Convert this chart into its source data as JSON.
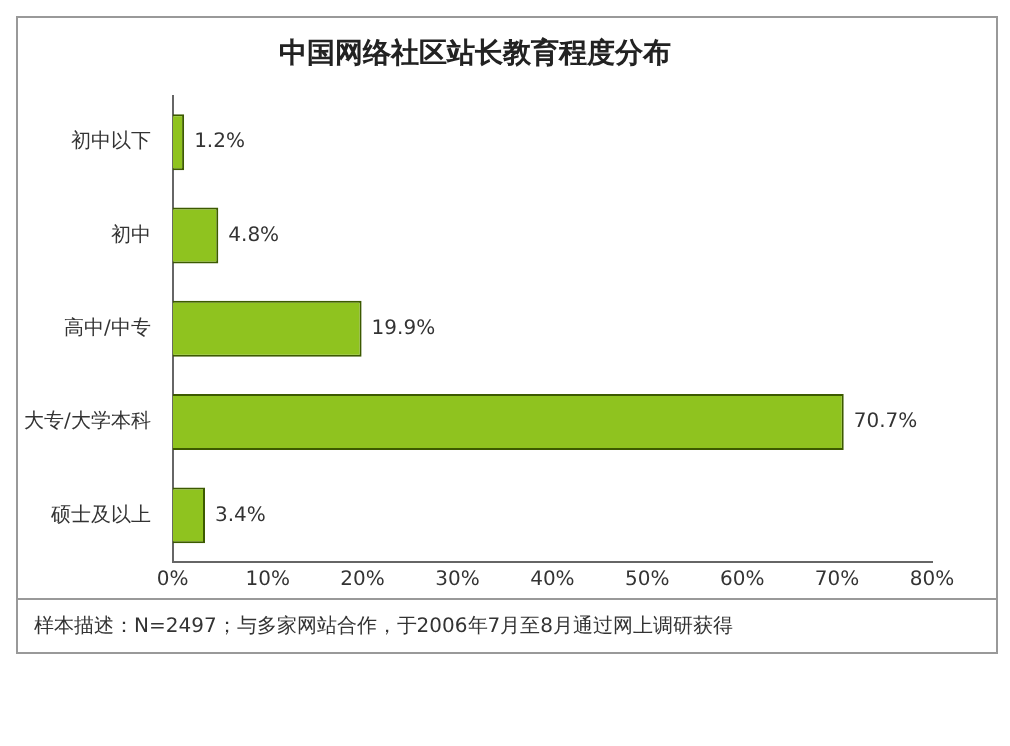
{
  "chart_data": {
    "type": "bar",
    "orientation": "horizontal",
    "title": "中国网络社区站长教育程度分布",
    "categories": [
      "初中以下",
      "初中",
      "高中/中专",
      "大专/大学本科",
      "硕士及以上"
    ],
    "values": [
      1.2,
      4.8,
      19.9,
      70.7,
      3.4
    ],
    "value_labels": [
      "1.2%",
      "4.8%",
      "19.9%",
      "70.7%",
      "3.4%"
    ],
    "color": "#8fc31f",
    "xlim": [
      0,
      80
    ],
    "xticks": [
      {
        "value": 0,
        "label": "0%"
      },
      {
        "value": 10,
        "label": "10%"
      },
      {
        "value": 20,
        "label": "20%"
      },
      {
        "value": 30,
        "label": "30%"
      },
      {
        "value": 40,
        "label": "40%"
      },
      {
        "value": 50,
        "label": "50%"
      },
      {
        "value": 60,
        "label": "60%"
      },
      {
        "value": 70,
        "label": "70%"
      },
      {
        "value": 80,
        "label": "80%"
      }
    ],
    "grid": false,
    "annotations": [
      "样本描述：N=2497；与多家网站合作，于2006年7月至8月通过网上调研获得"
    ]
  }
}
